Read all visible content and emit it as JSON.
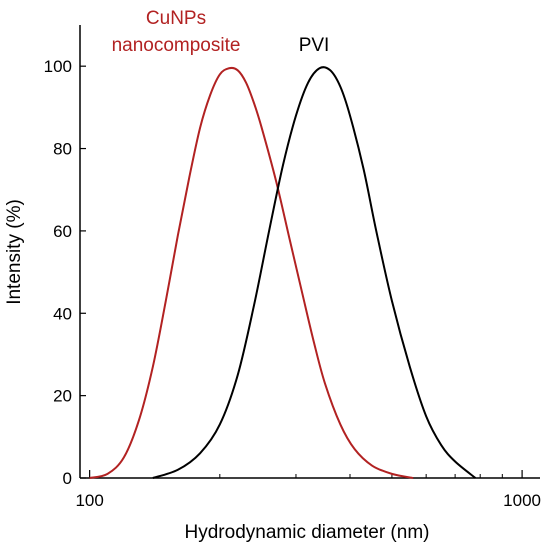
{
  "chart_data": {
    "type": "line",
    "title": "",
    "xlabel": "Hydrodynamic diameter (nm)",
    "ylabel": "Intensity (%)",
    "x_scale": "log",
    "xlim": [
      95,
      1100
    ],
    "ylim": [
      0,
      110
    ],
    "x_ticks": [
      100,
      1000
    ],
    "x_tick_labels": [
      "100",
      "1000"
    ],
    "y_ticks": [
      0,
      20,
      40,
      60,
      80,
      100
    ],
    "y_tick_labels": [
      "0",
      "20",
      "40",
      "60",
      "80",
      "100"
    ],
    "grid": false,
    "legend": "none (series labelled by on-plot annotations)",
    "series": [
      {
        "name": "CuNPs nanocomposite",
        "color": "#b22222",
        "x": [
          100,
          110,
          120,
          130,
          140,
          150,
          160,
          170,
          180,
          190,
          200,
          210,
          220,
          230,
          240,
          250,
          270,
          290,
          310,
          330,
          350,
          380,
          410,
          450,
          500,
          560
        ],
        "y": [
          0,
          1,
          5,
          14,
          27,
          43,
          59,
          73,
          85,
          93,
          98,
          99.5,
          99,
          96,
          91,
          85,
          72,
          58,
          45,
          33,
          23,
          13,
          7,
          3,
          1,
          0
        ]
      },
      {
        "name": "PVI",
        "color": "#000000",
        "x": [
          140,
          160,
          180,
          200,
          220,
          240,
          260,
          280,
          300,
          320,
          340,
          360,
          380,
          400,
          430,
          460,
          500,
          550,
          600,
          650,
          700,
          780
        ],
        "y": [
          0,
          2,
          6,
          13,
          25,
          42,
          60,
          76,
          88,
          96,
          99.5,
          99,
          95,
          88,
          75,
          60,
          43,
          27,
          15,
          8,
          4,
          0
        ]
      }
    ],
    "annotations": [
      {
        "text_lines": [
          "CuNPs",
          "nanocomposite"
        ],
        "color": "#b22222"
      },
      {
        "text_lines": [
          "PVI"
        ],
        "color": "#000000"
      }
    ]
  }
}
